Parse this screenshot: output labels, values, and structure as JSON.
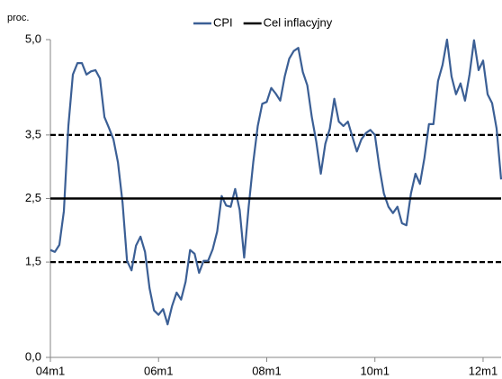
{
  "chart_data": {
    "type": "line",
    "y_axis_label": "proc.",
    "categories": [
      "04m1",
      null,
      null,
      null,
      null,
      null,
      null,
      null,
      null,
      null,
      null,
      null,
      null,
      null,
      null,
      null,
      null,
      null,
      null,
      null,
      null,
      null,
      null,
      null,
      "06m1",
      null,
      null,
      null,
      null,
      null,
      null,
      null,
      null,
      null,
      null,
      null,
      null,
      null,
      null,
      null,
      null,
      null,
      null,
      null,
      null,
      null,
      null,
      null,
      "08m1",
      null,
      null,
      null,
      null,
      null,
      null,
      null,
      null,
      null,
      null,
      null,
      null,
      null,
      null,
      null,
      null,
      null,
      null,
      null,
      null,
      null,
      null,
      null,
      "10m1",
      null,
      null,
      null,
      null,
      null,
      null,
      null,
      null,
      null,
      null,
      null,
      null,
      null,
      null,
      null,
      null,
      null,
      null,
      null,
      null,
      null,
      null,
      null,
      "12m1",
      null,
      null,
      null,
      null
    ],
    "series": [
      {
        "name": "CPI",
        "color": "#3b5f95",
        "values": [
          1.69,
          1.66,
          1.77,
          2.3,
          3.64,
          4.45,
          4.63,
          4.63,
          4.45,
          4.5,
          4.52,
          4.39,
          3.78,
          3.61,
          3.43,
          3.07,
          2.44,
          1.52,
          1.37,
          1.76,
          1.9,
          1.66,
          1.09,
          0.74,
          0.67,
          0.76,
          0.52,
          0.81,
          1.02,
          0.91,
          1.19,
          1.69,
          1.63,
          1.33,
          1.52,
          1.52,
          1.7,
          1.98,
          2.54,
          2.39,
          2.37,
          2.65,
          2.32,
          1.57,
          2.37,
          3.07,
          3.64,
          3.99,
          4.02,
          4.24,
          4.15,
          4.04,
          4.42,
          4.7,
          4.82,
          4.87,
          4.49,
          4.28,
          3.78,
          3.39,
          2.89,
          3.36,
          3.6,
          4.07,
          3.71,
          3.64,
          3.71,
          3.47,
          3.24,
          3.43,
          3.53,
          3.58,
          3.5,
          2.99,
          2.58,
          2.37,
          2.27,
          2.37,
          2.11,
          2.08,
          2.58,
          2.89,
          2.73,
          3.14,
          3.67,
          3.67,
          4.35,
          4.6,
          5.0,
          4.42,
          4.14,
          4.31,
          4.04,
          4.45,
          4.99,
          4.52,
          4.67,
          4.14,
          4.0,
          3.6,
          2.8
        ]
      },
      {
        "name": "Cel inflacyjny",
        "color": "#000000",
        "value": 2.5,
        "style": "solid"
      }
    ],
    "reference_lines": [
      {
        "value": 1.5,
        "color": "#000000",
        "style": "dashed"
      },
      {
        "value": 3.5,
        "color": "#000000",
        "style": "dashed"
      }
    ],
    "ylim": [
      0,
      5
    ],
    "yticks": [
      {
        "value": 0,
        "label": "0,0"
      },
      {
        "value": 1.5,
        "label": "1,5"
      },
      {
        "value": 2.5,
        "label": "2,5"
      },
      {
        "value": 3.5,
        "label": "3,5"
      },
      {
        "value": 5,
        "label": "5,0"
      }
    ],
    "grid": false,
    "legend": "top"
  }
}
